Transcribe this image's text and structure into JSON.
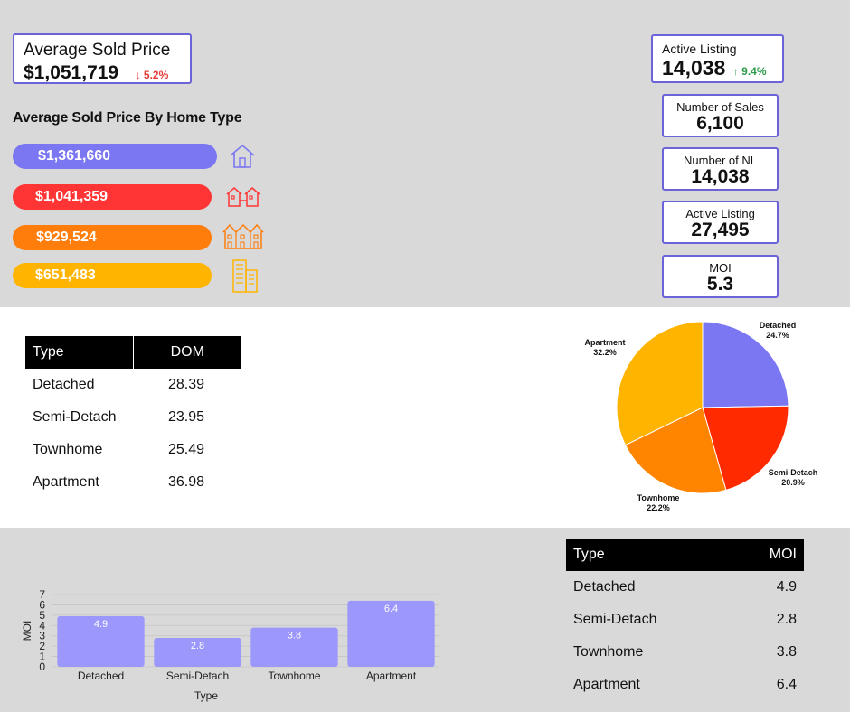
{
  "summary": {
    "avg_sold_price_label": "Average Sold Price",
    "avg_sold_price_value": "$1,051,719",
    "avg_sold_price_change": "↓ 5.2%"
  },
  "kpis": {
    "active_listing_top": {
      "label": "Active Listing",
      "value": "14,038",
      "change": "↑ 9.4%"
    },
    "number_of_sales": {
      "label": "Number of Sales",
      "value": "6,100"
    },
    "number_of_nl": {
      "label": "Number of NL",
      "value": "14,038"
    },
    "active_listing": {
      "label": "Active Listing",
      "value": "27,495"
    },
    "moi": {
      "label": "MOI",
      "value": "5.3"
    }
  },
  "price_by_type": {
    "title": "Average Sold Price By Home Type",
    "items": [
      {
        "value": "$1,361,660",
        "color": "#7b77f2",
        "icon": "house-icon"
      },
      {
        "value": "$1,041,359",
        "color": "#ff3535",
        "icon": "semi-detached-icon"
      },
      {
        "value": "$929,524",
        "color": "#ff7d0a",
        "icon": "townhouse-icon"
      },
      {
        "value": "$651,483",
        "color": "#ffb400",
        "icon": "apartment-building-icon"
      }
    ]
  },
  "dom_table": {
    "headers": [
      "Type",
      "DOM"
    ],
    "rows": [
      [
        "Detached",
        "28.39"
      ],
      [
        "Semi-Detach",
        "23.95"
      ],
      [
        "Townhome",
        "25.49"
      ],
      [
        "Apartment",
        "36.98"
      ]
    ]
  },
  "moi_table": {
    "headers": [
      "Type",
      "MOI"
    ],
    "rows": [
      [
        "Detached",
        "4.9"
      ],
      [
        "Semi-Detach",
        "2.8"
      ],
      [
        "Townhome",
        "3.8"
      ],
      [
        "Apartment",
        "6.4"
      ]
    ]
  },
  "chart_data": [
    {
      "type": "pie",
      "labels": [
        "Detached",
        "Semi-Detach",
        "Townhome",
        "Apartment"
      ],
      "values": [
        24.7,
        20.9,
        22.2,
        32.2
      ],
      "value_labels": [
        "24.7%",
        "20.9%",
        "22.2%",
        "32.2%"
      ],
      "colors": [
        "#7b77f2",
        "#ff2a00",
        "#ff8500",
        "#ffb400"
      ]
    },
    {
      "type": "bar",
      "categories": [
        "Detached",
        "Semi-Detach",
        "Townhome",
        "Apartment"
      ],
      "values": [
        4.9,
        2.8,
        3.8,
        6.4
      ],
      "xlabel": "Type",
      "ylabel": "MOI",
      "ylim": [
        0,
        7
      ],
      "yticks": [
        "0",
        "1",
        "2",
        "3",
        "4",
        "5",
        "6",
        "7"
      ],
      "grid": true,
      "color": "#9b97fb"
    }
  ]
}
